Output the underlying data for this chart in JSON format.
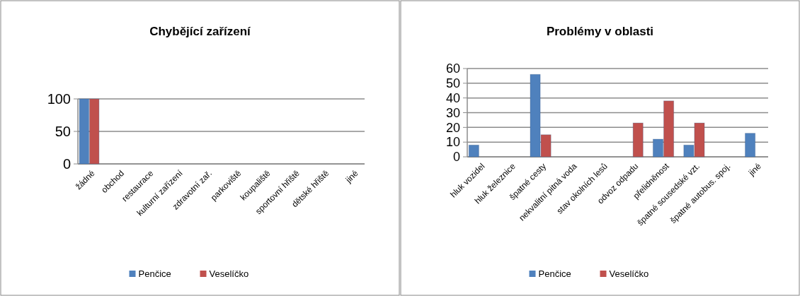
{
  "chart_data": [
    {
      "type": "bar",
      "title": "Chybějící zařízení",
      "categories": [
        "žádné",
        "obchod",
        "restaurace",
        "kulturní zařízení",
        "zdravotní zař.",
        "parkoviště",
        "koupaliště",
        "sportovní hřiště",
        "dětské hřiště",
        "jiné"
      ],
      "series": [
        {
          "name": "Penčice",
          "color": "#4f81bd",
          "values": [
            100,
            0,
            0,
            0,
            0,
            0,
            0,
            0,
            0,
            0
          ]
        },
        {
          "name": "Veselíčko",
          "color": "#c0504d",
          "values": [
            100,
            0,
            0,
            0,
            0,
            0,
            0,
            0,
            0,
            0
          ]
        }
      ],
      "ylim": [
        0,
        100
      ],
      "yticks": [
        0,
        50,
        100
      ],
      "grid": "y",
      "legend": "bottom"
    },
    {
      "type": "bar",
      "title": "Problémy v oblasti",
      "categories": [
        "hluk vozidel",
        "hluk železnice",
        "špatné cesty",
        "nekvalitní pitná voda",
        "stav okolních lesů",
        "odvoz odpadu",
        "přelidněnost",
        "špatné sousedské vzt.",
        "špatné autobus. spoj.",
        "jiné"
      ],
      "series": [
        {
          "name": "Penčice",
          "color": "#4f81bd",
          "values": [
            8,
            0,
            56,
            0,
            0,
            0,
            12,
            8,
            0,
            16
          ]
        },
        {
          "name": "Veselíčko",
          "color": "#c0504d",
          "values": [
            0,
            0,
            15,
            0,
            0,
            23,
            38,
            23,
            0,
            0
          ]
        }
      ],
      "ylim": [
        0,
        60
      ],
      "yticks": [
        0,
        10,
        20,
        30,
        40,
        50,
        60
      ],
      "grid": "y",
      "legend": "bottom"
    }
  ]
}
